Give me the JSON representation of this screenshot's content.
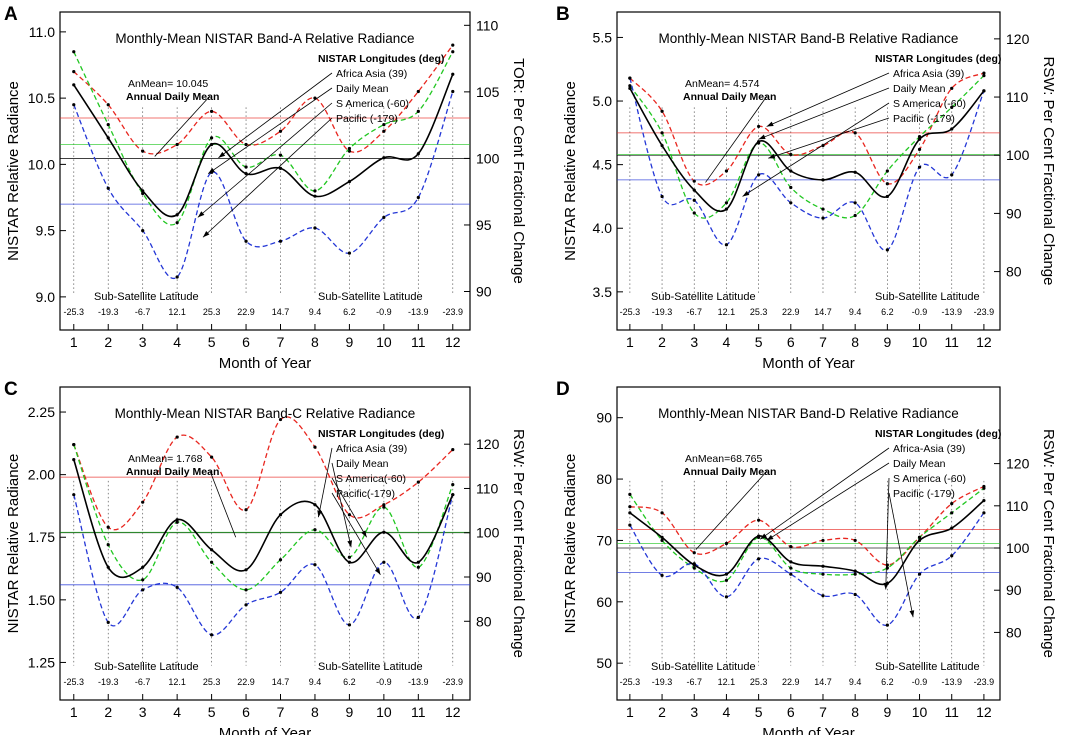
{
  "figure": {
    "panel_labels": [
      "A",
      "B",
      "C",
      "D"
    ]
  },
  "shared": {
    "xlabel": "Month of Year",
    "ylabel": "NISTAR Relative Radiance",
    "lat_heading": "Sub-Satellite Latitude",
    "lat_ticks": [
      "-25.3",
      "-19.3",
      "-6.7",
      "12.1",
      "25.3",
      "22.9",
      "14.7",
      "9.4",
      "6.2",
      "-0.9",
      "-13.9",
      "-23.9"
    ],
    "months": [
      "1",
      "2",
      "3",
      "4",
      "5",
      "6",
      "7",
      "8",
      "9",
      "10",
      "11",
      "12"
    ],
    "legend_title": "NISTAR Longitudes (deg)",
    "annual_label": "Annual Daily Mean",
    "colors": {
      "Africa Asia": "#e8261f",
      "Daily Mean": "#000000",
      "S America": "#22c722",
      "Pacific": "#2437d6"
    }
  },
  "chart_data": [
    {
      "panel": "A",
      "type": "line",
      "title": "Monthly-Mean NISTAR Band-A Relative Radiance",
      "xlabel": "Month of Year",
      "ylabel": "NISTAR Relative Radiance",
      "y2label": "TOR: Per Cent Fractional Change",
      "xlim": [
        0.6,
        12.5
      ],
      "ylim": [
        8.75,
        11.15
      ],
      "yticks": [
        9.0,
        9.5,
        10.0,
        10.5,
        11.0
      ],
      "ytick_labels": [
        "9.0",
        "9.5",
        "10.0",
        "10.5",
        "11.0"
      ],
      "y2ticks": [
        90,
        95,
        100,
        105,
        110
      ],
      "y2_base": 10.045,
      "annual_text": "AnMean= 10.045",
      "legend": [
        "NISTAR Longitudes (deg)",
        "Africa Asia (39)",
        "Daily Mean",
        "S America (-60)",
        "Pacific (-179)"
      ],
      "x": [
        1,
        2,
        3,
        4,
        5,
        6,
        7,
        8,
        9,
        10,
        11,
        12
      ],
      "series": [
        {
          "name": "Africa Asia",
          "values": [
            10.7,
            10.45,
            10.1,
            10.15,
            10.4,
            10.15,
            10.25,
            10.5,
            10.1,
            10.25,
            10.55,
            10.9
          ],
          "mean": 10.35
        },
        {
          "name": "Daily Mean",
          "values": [
            10.6,
            10.2,
            9.8,
            9.62,
            10.15,
            9.93,
            9.97,
            9.76,
            9.87,
            10.05,
            10.08,
            10.68
          ],
          "mean": 10.045
        },
        {
          "name": "S America",
          "values": [
            10.85,
            10.3,
            9.78,
            9.56,
            10.2,
            9.98,
            10.07,
            9.8,
            10.12,
            10.3,
            10.4,
            10.85
          ],
          "mean": 10.15
        },
        {
          "name": "Pacific",
          "values": [
            10.45,
            9.82,
            9.5,
            9.15,
            9.94,
            9.42,
            9.42,
            9.52,
            9.33,
            9.6,
            9.75,
            10.55
          ],
          "mean": 9.7
        }
      ],
      "annotations": {
        "annual": [
          3.35,
          10.06
        ],
        "legend": [
          [
            5.2,
            10.05
          ],
          [
            4.9,
            9.93
          ],
          [
            4.6,
            9.6
          ],
          [
            4.75,
            9.45
          ]
        ]
      }
    },
    {
      "panel": "B",
      "type": "line",
      "title": "Monthly-Mean NISTAR Band-B Relative Radiance",
      "xlabel": "Month of Year",
      "ylabel": "NISTAR Relative Radiance",
      "y2label": "RSW: Per Cent Fractional Change",
      "xlim": [
        0.6,
        12.5
      ],
      "ylim": [
        3.2,
        5.7
      ],
      "yticks": [
        3.5,
        4.0,
        4.5,
        5.0,
        5.5
      ],
      "ytick_labels": [
        "3.5",
        "4.0",
        "4.5",
        "5.0",
        "5.5"
      ],
      "y2ticks": [
        80,
        90,
        100,
        110,
        120
      ],
      "y2_base": 4.574,
      "annual_text": "AnMean= 4.574",
      "legend": [
        "NISTAR Longitudes (deg)",
        "Africa Asia (39)",
        "Daily Mean",
        "S America (-60)",
        "Pacific (-179)"
      ],
      "x": [
        1,
        2,
        3,
        4,
        5,
        6,
        7,
        8,
        9,
        10,
        11,
        12
      ],
      "series": [
        {
          "name": "Africa Asia",
          "values": [
            5.18,
            4.92,
            4.37,
            4.45,
            4.8,
            4.58,
            4.65,
            4.75,
            4.35,
            4.62,
            5.1,
            5.22
          ],
          "mean": 4.75
        },
        {
          "name": "Daily Mean",
          "values": [
            5.1,
            4.65,
            4.3,
            4.15,
            4.68,
            4.45,
            4.38,
            4.44,
            4.25,
            4.7,
            4.78,
            5.08
          ],
          "mean": 4.574
        },
        {
          "name": "S America",
          "values": [
            5.12,
            4.75,
            4.12,
            4.2,
            4.67,
            4.32,
            4.15,
            4.1,
            4.45,
            4.72,
            4.95,
            5.2
          ],
          "mean": 4.58
        },
        {
          "name": "Pacific",
          "values": [
            5.18,
            4.25,
            4.22,
            3.87,
            4.42,
            4.2,
            4.08,
            4.2,
            3.83,
            4.48,
            4.42,
            5.08
          ],
          "mean": 4.38
        }
      ],
      "annotations": {
        "annual": [
          3.35,
          4.36
        ],
        "legend": [
          [
            5.25,
            4.8
          ],
          [
            5.0,
            4.7
          ],
          [
            4.5,
            4.25
          ],
          [
            5.3,
            4.55
          ]
        ]
      }
    },
    {
      "panel": "C",
      "type": "line",
      "title": "Monthly-Mean NISTAR Band-C Relative Radiance",
      "xlabel": "Month of Year",
      "ylabel": "NISTAR Relative Radiance",
      "y2label": "RSW: Per Cent Fractional Change",
      "xlim": [
        0.6,
        12.5
      ],
      "ylim": [
        1.1,
        2.35
      ],
      "yticks": [
        1.25,
        1.5,
        1.75,
        2.0,
        2.25
      ],
      "ytick_labels": [
        "1.25",
        "1.50",
        "1.75",
        "2.00",
        "2.25"
      ],
      "y2ticks": [
        80,
        90,
        100,
        110,
        120
      ],
      "y2_base": 1.768,
      "annual_text": "AnMean= 1.768",
      "legend": [
        "NISTAR Longitudes (deg)",
        "Africa Asia (39)",
        "Daily Mean",
        "S America(-60)",
        "Pacific(-179)"
      ],
      "x": [
        1,
        2,
        3,
        4,
        5,
        6,
        7,
        8,
        9,
        10,
        11,
        12
      ],
      "series": [
        {
          "name": "Africa Asia",
          "values": [
            2.12,
            1.79,
            1.89,
            2.15,
            2.07,
            1.86,
            2.22,
            2.11,
            1.84,
            1.88,
            1.97,
            2.1
          ],
          "mean": 1.99
        },
        {
          "name": "Daily Mean",
          "values": [
            2.06,
            1.63,
            1.63,
            1.82,
            1.7,
            1.62,
            1.84,
            1.88,
            1.65,
            1.77,
            1.65,
            1.92
          ],
          "mean": 1.768
        },
        {
          "name": "S America",
          "values": [
            2.12,
            1.72,
            1.58,
            1.81,
            1.65,
            1.54,
            1.66,
            1.78,
            1.67,
            1.87,
            1.63,
            1.96
          ],
          "mean": 1.77
        },
        {
          "name": "Pacific",
          "values": [
            1.92,
            1.41,
            1.54,
            1.55,
            1.36,
            1.48,
            1.53,
            1.64,
            1.4,
            1.65,
            1.43,
            1.92
          ],
          "mean": 1.56
        }
      ],
      "annotations": {
        "annual": [
          5.7,
          1.75
        ],
        "legend": [
          [
            8.1,
            1.83
          ],
          [
            9.05,
            1.71
          ],
          [
            9.5,
            1.75
          ],
          [
            9.9,
            1.6
          ]
        ]
      }
    },
    {
      "panel": "D",
      "type": "line",
      "title": "Monthly-Mean NISTAR Band-D Relative Radiance",
      "xlabel": "Month of Year",
      "ylabel": "NISTAR Relative Radiance",
      "y2label": "RSW: Per Cent Fractional Change",
      "xlim": [
        0.6,
        12.5
      ],
      "ylim": [
        44.0,
        95.0
      ],
      "yticks": [
        50,
        60,
        70,
        80,
        90
      ],
      "ytick_labels": [
        "50",
        "60",
        "70",
        "80",
        "90"
      ],
      "y2ticks": [
        80,
        90,
        100,
        110,
        120
      ],
      "y2_base": 68.765,
      "annual_text": "AnMean=68.765",
      "legend": [
        "NISTAR Longitudes (deg)",
        "Africa-Asia (39)",
        "Daily Mean",
        "S America (-60)",
        "Pacific (-179)"
      ],
      "x": [
        1,
        2,
        3,
        4,
        5,
        6,
        7,
        8,
        9,
        10,
        11,
        12
      ],
      "series": [
        {
          "name": "Africa Asia",
          "values": [
            75.5,
            74.5,
            68.0,
            69.5,
            73.3,
            69.0,
            70.0,
            70.0,
            66.0,
            70.5,
            76.0,
            78.8
          ],
          "mean": 71.8
        },
        {
          "name": "Daily Mean",
          "values": [
            74.5,
            70.5,
            66.0,
            64.5,
            70.7,
            66.5,
            65.8,
            65.0,
            63.0,
            70.0,
            72.0,
            76.5
          ],
          "mean": 68.765
        },
        {
          "name": "S America",
          "values": [
            77.5,
            70.0,
            65.5,
            63.5,
            70.5,
            65.5,
            64.5,
            64.5,
            65.5,
            70.5,
            74.5,
            78.5
          ],
          "mean": 69.5
        },
        {
          "name": "Pacific",
          "values": [
            72.5,
            64.3,
            66.2,
            60.8,
            67.0,
            64.5,
            61.0,
            61.2,
            56.2,
            64.5,
            67.5,
            74.5
          ],
          "mean": 64.8
        }
      ],
      "annotations": {
        "annual": [
          3.05,
          68.5
        ],
        "legend": [
          [
            5.05,
            70.2
          ],
          [
            5.25,
            70.0
          ],
          [
            8.95,
            62.0
          ],
          [
            9.8,
            57.5
          ]
        ]
      }
    }
  ]
}
